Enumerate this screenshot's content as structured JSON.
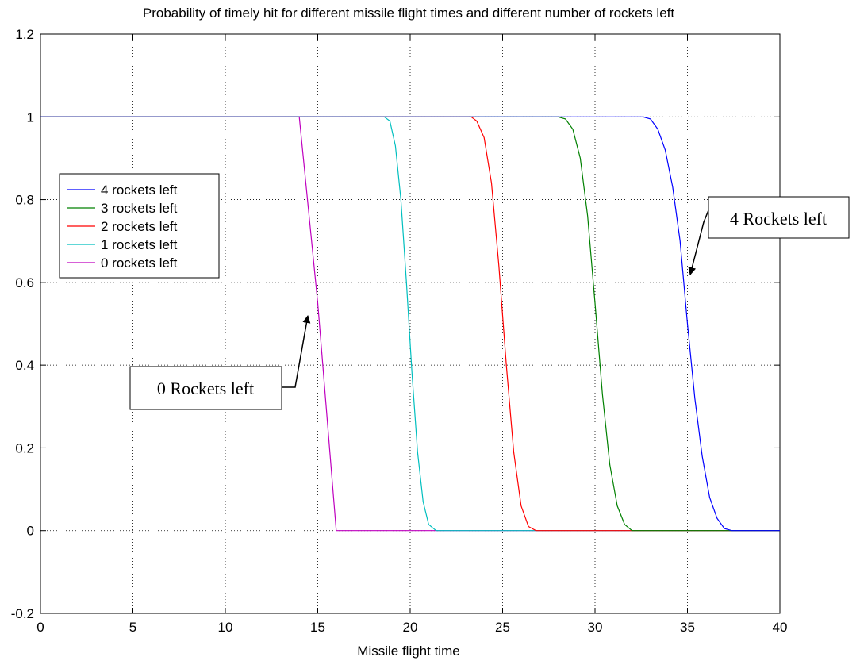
{
  "chart_data": {
    "type": "line",
    "title": "Probability of timely hit for different missile flight times and different number of rockets left",
    "xlabel": "Missile flight time",
    "ylabel": "",
    "xlim": [
      0,
      40
    ],
    "ylim": [
      -0.2,
      1.2
    ],
    "x_ticks": [
      0,
      5,
      10,
      15,
      20,
      25,
      30,
      35,
      40
    ],
    "y_ticks": [
      -0.2,
      0,
      0.2,
      0.4,
      0.6,
      0.8,
      1,
      1.2
    ],
    "x_tick_labels": [
      "0",
      "5",
      "10",
      "15",
      "20",
      "25",
      "30",
      "35",
      "40"
    ],
    "y_tick_labels": [
      "-0.2",
      "0",
      "0.2",
      "0.4",
      "0.6",
      "0.8",
      "1",
      "1.2"
    ],
    "grid": true,
    "legend_position": "left",
    "series": [
      {
        "name": "4 rockets left",
        "color": "#0000ff",
        "x": [
          0,
          32.6,
          33.0,
          33.4,
          33.8,
          34.2,
          34.6,
          35.0,
          35.4,
          35.8,
          36.2,
          36.6,
          37.0,
          37.4,
          40
        ],
        "y": [
          1,
          1,
          0.995,
          0.97,
          0.92,
          0.83,
          0.7,
          0.5,
          0.32,
          0.18,
          0.08,
          0.03,
          0.005,
          0,
          0
        ]
      },
      {
        "name": "3 rockets left",
        "color": "#008000",
        "x": [
          0,
          28.0,
          28.4,
          28.8,
          29.2,
          29.6,
          30.0,
          30.4,
          30.8,
          31.2,
          31.6,
          32.0,
          40
        ],
        "y": [
          1,
          1,
          0.995,
          0.97,
          0.9,
          0.76,
          0.55,
          0.33,
          0.16,
          0.06,
          0.015,
          0,
          0
        ]
      },
      {
        "name": "2 rockets left",
        "color": "#ff0000",
        "x": [
          0,
          23.3,
          23.6,
          24.0,
          24.4,
          24.8,
          25.2,
          25.6,
          26.0,
          26.4,
          26.8,
          40
        ],
        "y": [
          1,
          1,
          0.99,
          0.95,
          0.84,
          0.64,
          0.4,
          0.19,
          0.06,
          0.01,
          0,
          0
        ]
      },
      {
        "name": "1 rockets left",
        "color": "#00bfbf",
        "x": [
          0,
          18.6,
          18.9,
          19.2,
          19.5,
          19.8,
          20.1,
          20.4,
          20.7,
          21.0,
          21.4,
          40
        ],
        "y": [
          1,
          1,
          0.99,
          0.93,
          0.8,
          0.6,
          0.38,
          0.19,
          0.07,
          0.015,
          0,
          0
        ]
      },
      {
        "name": "0 rockets left",
        "color": "#bf00bf",
        "x": [
          0,
          14.0,
          15.0,
          16.0,
          40
        ],
        "y": [
          1,
          1,
          0.55,
          0,
          0
        ]
      }
    ],
    "annotations": [
      {
        "text": "0 Rockets left",
        "arrow_to": [
          14.5,
          0.55
        ]
      },
      {
        "text": "4 Rockets left",
        "arrow_to": [
          35.1,
          0.61
        ]
      }
    ]
  }
}
